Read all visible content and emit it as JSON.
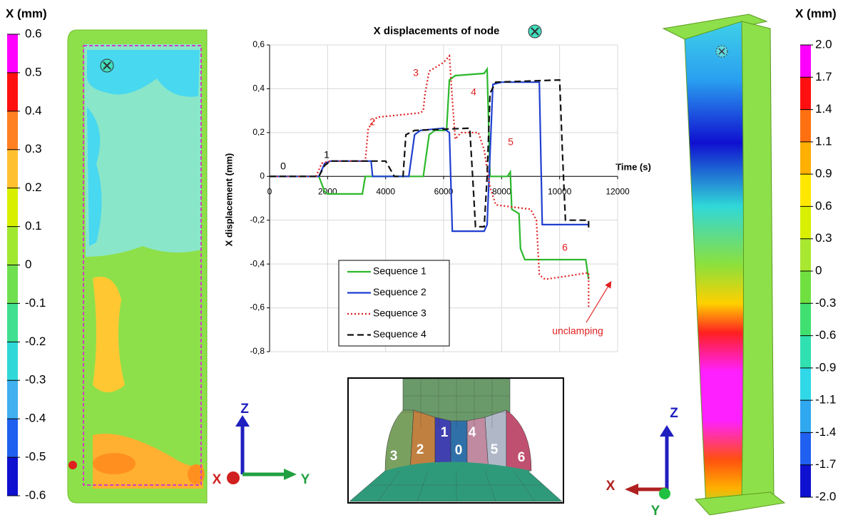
{
  "left_colorbar": {
    "title": "X (mm)",
    "ticks": [
      0.6,
      0.5,
      0.4,
      0.3,
      0.2,
      0.1,
      0,
      -0.1,
      -0.2,
      -0.3,
      -0.4,
      -0.5,
      -0.6
    ],
    "colors": [
      "#ff00ff",
      "#ff1010",
      "#ff8020",
      "#ffc030",
      "#d8f000",
      "#a0e830",
      "#70e050",
      "#40e090",
      "#30d8d8",
      "#40b0f0",
      "#2060f0",
      "#1010d0"
    ]
  },
  "right_colorbar": {
    "title": "X (mm)",
    "ticks": [
      {
        "value": 2,
        "label": "2.0"
      },
      1.7,
      1.4,
      1.1,
      0.9,
      0.6,
      0.3,
      0,
      -0.3,
      -0.6,
      -0.9,
      -1.1,
      -1.4,
      -1.7,
      {
        "value": -2,
        "label": "-2.0"
      }
    ],
    "colors": [
      "#ff00ff",
      "#ff1010",
      "#ff7010",
      "#ffb000",
      "#ffe800",
      "#d8f000",
      "#a8e830",
      "#70e040",
      "#40e070",
      "#30e0b0",
      "#30d8e8",
      "#30a8f0",
      "#2060f0",
      "#1010d0"
    ]
  },
  "chart_data": {
    "type": "line",
    "title": "X displacements of node",
    "x_label": "Time (s)",
    "y_label": "X displacement (mm)",
    "xlim": [
      0,
      12000
    ],
    "ylim": [
      -0.8,
      0.6
    ],
    "xticks": [
      0,
      2000,
      4000,
      6000,
      8000,
      10000,
      12000
    ],
    "yticks": [
      {
        "value": 0.6,
        "label": "0,6"
      },
      {
        "value": 0.4,
        "label": "0,4"
      },
      {
        "value": 0.2,
        "label": "0,2"
      },
      0,
      {
        "value": -0.2,
        "label": "-0,2"
      },
      {
        "value": -0.4,
        "label": "-0,4"
      },
      {
        "value": -0.6,
        "label": "-0,6"
      },
      {
        "value": -0.8,
        "label": "-0,8"
      }
    ],
    "grid": true,
    "legend": "lower center",
    "series": [
      {
        "name": "Sequence 1",
        "color": "#2cb82c",
        "dash": "solid",
        "x": [
          0,
          1700,
          1900,
          2000,
          3200,
          3300,
          5300,
          5500,
          5700,
          6100,
          6200,
          6400,
          7400,
          7500,
          7600,
          8200,
          8300,
          8350,
          8600,
          8650,
          8800,
          10900,
          11000
        ],
        "values": [
          0,
          0,
          -0.07,
          -0.08,
          -0.08,
          0,
          0,
          0.19,
          0.21,
          0.21,
          0.44,
          0.46,
          0.47,
          0.49,
          0,
          0,
          0.02,
          -0.15,
          -0.17,
          -0.33,
          -0.38,
          -0.38,
          -0.47
        ]
      },
      {
        "name": "Sequence 2",
        "color": "#1f3fd0",
        "dash": "solid",
        "x": [
          0,
          1700,
          1900,
          2100,
          3500,
          3550,
          4800,
          5000,
          5200,
          6000,
          6200,
          6300,
          7400,
          7500,
          7700,
          8000,
          9300,
          9400,
          11000
        ],
        "values": [
          0,
          0,
          0.06,
          0.07,
          0.07,
          0,
          0,
          0.19,
          0.21,
          0.22,
          0.2,
          -0.25,
          -0.25,
          -0.22,
          0.42,
          0.43,
          0.43,
          -0.22,
          -0.22
        ]
      },
      {
        "name": "Sequence 3",
        "color": "#e02020",
        "dash": "dotted",
        "x": [
          0,
          1600,
          1800,
          2100,
          3300,
          3400,
          3700,
          5200,
          5300,
          5350,
          5500,
          6000,
          6200,
          6300,
          6400,
          6600,
          7200,
          7400,
          7600,
          7800,
          9000,
          9200,
          9300,
          9500,
          11000,
          11000
        ],
        "values": [
          0,
          0,
          0.06,
          0.07,
          0.07,
          0.22,
          0.27,
          0.29,
          0.3,
          0.37,
          0.48,
          0.52,
          0.55,
          0.35,
          0.17,
          0.2,
          0.2,
          0.12,
          -0.05,
          -0.13,
          -0.15,
          -0.2,
          -0.45,
          -0.47,
          -0.44,
          -0.6
        ]
      },
      {
        "name": "Sequence 4",
        "color": "#111111",
        "dash": "dashed",
        "x": [
          0,
          1700,
          1900,
          2100,
          4000,
          4300,
          4600,
          4700,
          5000,
          6900,
          7000,
          7100,
          7400,
          7500,
          7600,
          7800,
          10000,
          10100,
          10200,
          11000,
          11000
        ],
        "values": [
          0,
          0,
          0.05,
          0.07,
          0.07,
          0,
          0,
          0.19,
          0.21,
          0.22,
          0,
          -0.23,
          -0.23,
          0,
          0.38,
          0.43,
          0.44,
          0.1,
          -0.2,
          -0.2,
          -0.25
        ]
      }
    ],
    "annotations": [
      "0",
      "1",
      "2",
      "3",
      "4",
      "5",
      "6",
      "unclamping"
    ]
  },
  "mesh_labels": [
    "3",
    "2",
    "1",
    "0",
    "4",
    "5",
    "6"
  ],
  "left_triad": {
    "z": "Z",
    "x": "X",
    "y": "Y"
  },
  "right_triad": {
    "z": "Z",
    "x": "X",
    "y": "Y"
  }
}
